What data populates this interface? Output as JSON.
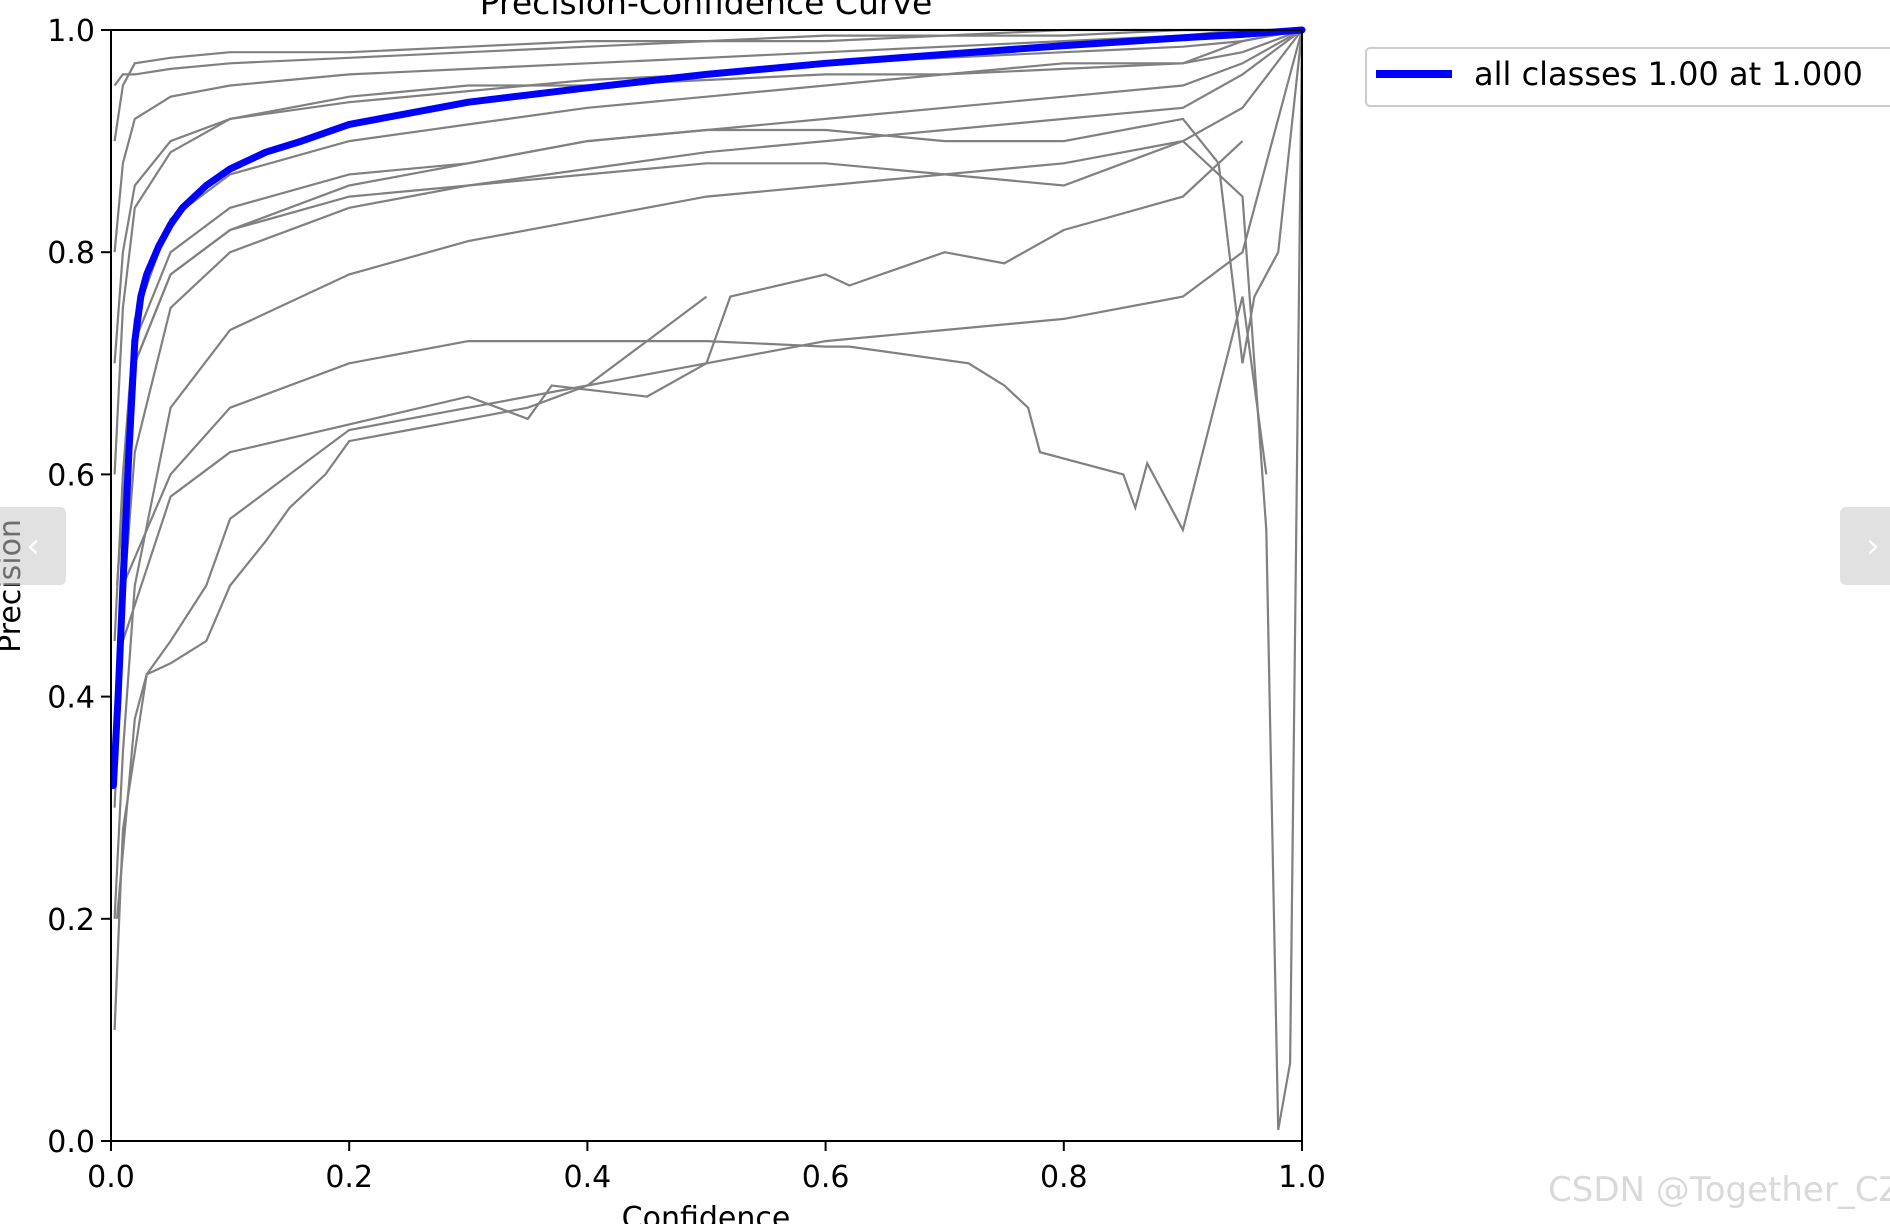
{
  "chart_data": {
    "type": "line",
    "title": "Precision-Confidence Curve",
    "xlabel": "Confidence",
    "ylabel": "Precision",
    "xlim": [
      0,
      1
    ],
    "ylim": [
      0,
      1
    ],
    "xticks": [
      "0.0",
      "0.2",
      "0.4",
      "0.6",
      "0.8",
      "1.0"
    ],
    "yticks": [
      "0.0",
      "0.2",
      "0.4",
      "0.6",
      "0.8",
      "1.0"
    ],
    "grid": false,
    "legend_position": "outside-top-right",
    "series": [
      {
        "name": "all classes 1.00 at 1.000",
        "color": "#0000ff",
        "x": [
          0.002,
          0.006,
          0.01,
          0.015,
          0.02,
          0.025,
          0.03,
          0.04,
          0.05,
          0.06,
          0.08,
          0.1,
          0.13,
          0.16,
          0.2,
          0.25,
          0.3,
          0.4,
          0.5,
          0.6,
          0.7,
          0.8,
          0.9,
          0.95,
          1.0
        ],
        "y": [
          0.32,
          0.4,
          0.5,
          0.62,
          0.72,
          0.76,
          0.78,
          0.805,
          0.825,
          0.84,
          0.86,
          0.875,
          0.89,
          0.9,
          0.915,
          0.925,
          0.935,
          0.948,
          0.96,
          0.97,
          0.978,
          0.986,
          0.993,
          0.996,
          1.0
        ]
      }
    ],
    "per_class_color": "#808080",
    "per_class_curves": [
      {
        "x": [
          0.003,
          0.01,
          0.02,
          0.05,
          0.1,
          0.2,
          0.3,
          0.4,
          0.5,
          0.6,
          0.7,
          0.8,
          0.9,
          0.95,
          1.0
        ],
        "y": [
          0.95,
          0.96,
          0.96,
          0.965,
          0.97,
          0.975,
          0.98,
          0.985,
          0.99,
          0.99,
          0.995,
          0.995,
          1.0,
          1.0,
          1.0
        ]
      },
      {
        "x": [
          0.003,
          0.01,
          0.02,
          0.05,
          0.1,
          0.2,
          0.3,
          0.4,
          0.5,
          0.6,
          0.7,
          0.8,
          0.9,
          0.95,
          1.0
        ],
        "y": [
          0.8,
          0.88,
          0.92,
          0.94,
          0.95,
          0.96,
          0.965,
          0.97,
          0.975,
          0.98,
          0.985,
          0.99,
          0.995,
          1.0,
          1.0
        ]
      },
      {
        "x": [
          0.003,
          0.01,
          0.02,
          0.05,
          0.1,
          0.2,
          0.3,
          0.4,
          0.5,
          0.6,
          0.7,
          0.8,
          0.9,
          0.95,
          1.0
        ],
        "y": [
          0.6,
          0.75,
          0.84,
          0.89,
          0.92,
          0.935,
          0.945,
          0.955,
          0.96,
          0.97,
          0.975,
          0.98,
          0.985,
          0.99,
          1.0
        ]
      },
      {
        "x": [
          0.003,
          0.01,
          0.02,
          0.05,
          0.1,
          0.2,
          0.3,
          0.4,
          0.5,
          0.6,
          0.7,
          0.8,
          0.9,
          0.95,
          1.0
        ],
        "y": [
          0.45,
          0.6,
          0.74,
          0.83,
          0.87,
          0.9,
          0.915,
          0.93,
          0.94,
          0.95,
          0.96,
          0.965,
          0.97,
          0.98,
          1.0
        ]
      },
      {
        "x": [
          0.003,
          0.01,
          0.02,
          0.05,
          0.1,
          0.2,
          0.3,
          0.4,
          0.5,
          0.6,
          0.7,
          0.8,
          0.9,
          0.95,
          1.0
        ],
        "y": [
          0.3,
          0.48,
          0.62,
          0.75,
          0.8,
          0.84,
          0.86,
          0.875,
          0.89,
          0.9,
          0.91,
          0.92,
          0.93,
          0.96,
          1.0
        ]
      },
      {
        "x": [
          0.003,
          0.01,
          0.02,
          0.05,
          0.1,
          0.2,
          0.3,
          0.4,
          0.5,
          0.6,
          0.7,
          0.8,
          0.9,
          0.95,
          1.0
        ],
        "y": [
          0.2,
          0.35,
          0.5,
          0.66,
          0.73,
          0.78,
          0.81,
          0.83,
          0.85,
          0.86,
          0.87,
          0.88,
          0.9,
          0.93,
          1.0
        ]
      },
      {
        "x": [
          0.003,
          0.01,
          0.03,
          0.05,
          0.08,
          0.1,
          0.15,
          0.2,
          0.3,
          0.4,
          0.5,
          0.6,
          0.7,
          0.8,
          0.9,
          0.95,
          1.0
        ],
        "y": [
          0.1,
          0.28,
          0.42,
          0.45,
          0.5,
          0.56,
          0.6,
          0.64,
          0.66,
          0.68,
          0.7,
          0.72,
          0.73,
          0.74,
          0.76,
          0.8,
          1.0
        ]
      },
      {
        "x": [
          0.005,
          0.02,
          0.03,
          0.05,
          0.08,
          0.1,
          0.13,
          0.15,
          0.18,
          0.2,
          0.25,
          0.3,
          0.35,
          0.4,
          0.45,
          0.5
        ],
        "y": [
          0.2,
          0.38,
          0.42,
          0.43,
          0.45,
          0.5,
          0.54,
          0.57,
          0.6,
          0.63,
          0.64,
          0.65,
          0.66,
          0.68,
          0.72,
          0.76
        ]
      },
      {
        "x": [
          0.01,
          0.05,
          0.1,
          0.2,
          0.3,
          0.4,
          0.5,
          0.6,
          0.62,
          0.72,
          0.75,
          0.77,
          0.78,
          0.85,
          0.86,
          0.87,
          0.9,
          0.95,
          0.97
        ],
        "y": [
          0.5,
          0.6,
          0.66,
          0.7,
          0.72,
          0.72,
          0.72,
          0.715,
          0.715,
          0.7,
          0.68,
          0.66,
          0.62,
          0.6,
          0.57,
          0.61,
          0.55,
          0.76,
          0.6
        ]
      },
      {
        "x": [
          0.01,
          0.05,
          0.1,
          0.3,
          0.35,
          0.37,
          0.45,
          0.5,
          0.52,
          0.6,
          0.62,
          0.7,
          0.75,
          0.8,
          0.9,
          0.95
        ],
        "y": [
          0.45,
          0.58,
          0.62,
          0.67,
          0.65,
          0.68,
          0.67,
          0.7,
          0.76,
          0.78,
          0.77,
          0.8,
          0.79,
          0.82,
          0.85,
          0.9
        ]
      },
      {
        "x": [
          0.005,
          0.02,
          0.05,
          0.1,
          0.2,
          0.3,
          0.4,
          0.5,
          0.6,
          0.7,
          0.8,
          0.9,
          0.95,
          0.97,
          0.98,
          0.99,
          1.0
        ],
        "y": [
          0.4,
          0.7,
          0.78,
          0.82,
          0.85,
          0.86,
          0.87,
          0.88,
          0.88,
          0.87,
          0.86,
          0.9,
          0.85,
          0.55,
          0.01,
          0.07,
          1.0
        ]
      },
      {
        "x": [
          0.005,
          0.02,
          0.05,
          0.1,
          0.2,
          0.3,
          0.4,
          0.5,
          0.6,
          0.7,
          0.8,
          0.9,
          0.93,
          0.95,
          0.96,
          0.98,
          1.0
        ],
        "y": [
          0.5,
          0.72,
          0.8,
          0.84,
          0.87,
          0.88,
          0.9,
          0.91,
          0.91,
          0.9,
          0.9,
          0.92,
          0.88,
          0.7,
          0.76,
          0.8,
          1.0
        ]
      },
      {
        "x": [
          0.003,
          0.01,
          0.02,
          0.05,
          0.1,
          0.2,
          0.3,
          0.4,
          0.5,
          0.6,
          0.7,
          0.8,
          0.9,
          0.95,
          1.0
        ],
        "y": [
          0.7,
          0.8,
          0.86,
          0.9,
          0.92,
          0.94,
          0.95,
          0.95,
          0.955,
          0.96,
          0.96,
          0.97,
          0.97,
          0.99,
          1.0
        ]
      },
      {
        "x": [
          0.003,
          0.01,
          0.02,
          0.05,
          0.1,
          0.2,
          0.3,
          0.4,
          0.5,
          0.6,
          0.7,
          0.8,
          0.9,
          0.95,
          1.0
        ],
        "y": [
          0.9,
          0.95,
          0.97,
          0.975,
          0.98,
          0.98,
          0.985,
          0.99,
          0.99,
          0.995,
          0.995,
          1.0,
          1.0,
          1.0,
          1.0
        ]
      },
      {
        "x": [
          0.003,
          0.01,
          0.02,
          0.05,
          0.1,
          0.2,
          0.3,
          0.4,
          0.5,
          0.6,
          0.7,
          0.8,
          0.9,
          0.95,
          1.0
        ],
        "y": [
          0.35,
          0.55,
          0.7,
          0.78,
          0.82,
          0.86,
          0.88,
          0.9,
          0.91,
          0.92,
          0.93,
          0.94,
          0.95,
          0.97,
          1.0
        ]
      }
    ]
  },
  "legend": {
    "items": [
      {
        "label": "all classes 1.00 at 1.000",
        "color": "#0000ff"
      }
    ]
  },
  "navigation": {
    "prev_icon": "‹",
    "next_icon": "›"
  },
  "watermark": "CSDN @Together_CZ"
}
